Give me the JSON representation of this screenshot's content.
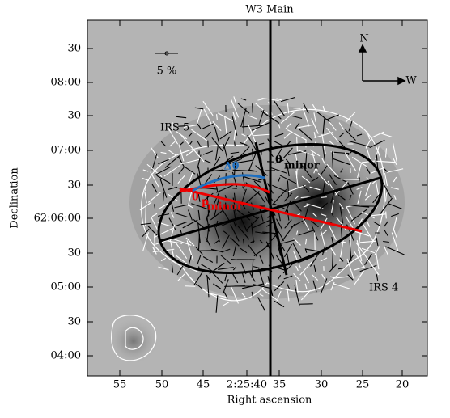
{
  "figure": {
    "title": "W3 Main",
    "x_label": "Right ascension",
    "y_label": "Declination",
    "x_tick_labels": [
      "55",
      "50",
      "45",
      "2:25:40",
      "35",
      "30",
      "25",
      "20"
    ],
    "y_tick_labels": [
      "30",
      "08:00",
      "30",
      "07:00",
      "30",
      "62:06:00",
      "30",
      "05:00",
      "30",
      "04:00"
    ],
    "scale_label": "5 %",
    "compass": {
      "north": "N",
      "west": "W"
    },
    "sources": [
      "IRS 5",
      "IRS 4"
    ],
    "annotations": {
      "delta_theta": "Δθ",
      "theta_minor": "θ",
      "theta_minor_sub": "minor",
      "theta_p_minor": "θ",
      "theta_p_minor_sub": "p",
      "theta_p_minor_subsub": "minor"
    }
  }
}
